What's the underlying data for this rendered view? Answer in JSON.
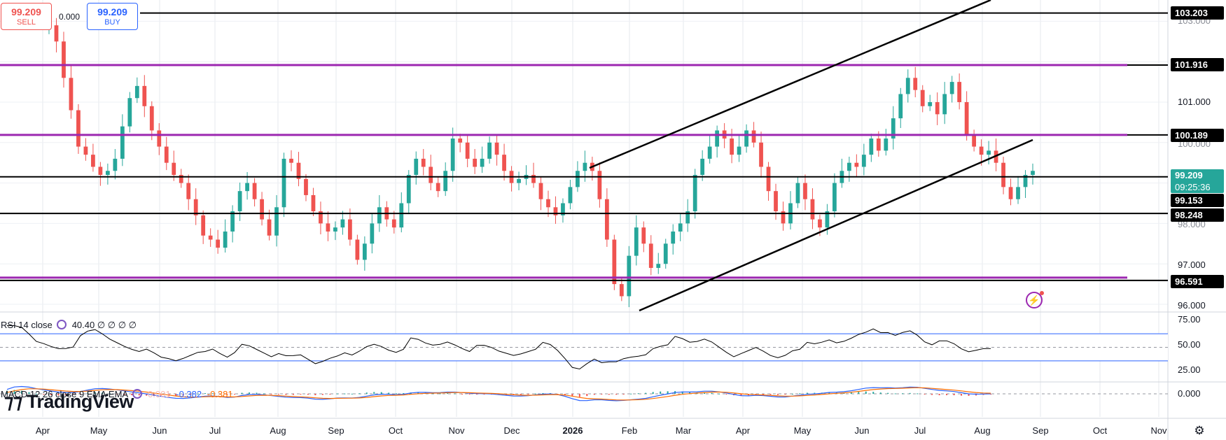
{
  "trade": {
    "sell_price": "99.209",
    "sell_label": "SELL",
    "spread": "0.000",
    "buy_price": "99.209",
    "buy_label": "BUY"
  },
  "price_axis": {
    "ticks": [
      "103.000",
      "101.000",
      "100.000",
      "97.000",
      "96.000"
    ],
    "tags": [
      {
        "value": "103.203",
        "color": "#000000"
      },
      {
        "value": "101.916",
        "color": "#000000"
      },
      {
        "value": "100.189",
        "color": "#000000"
      },
      {
        "value": "99.153",
        "color": "#000000"
      },
      {
        "value": "98.248",
        "color": "#000000"
      },
      {
        "value": "96.591",
        "color": "#000000"
      }
    ],
    "current": {
      "price": "99.209",
      "countdown": "09:25:36",
      "color": "#26a69a"
    },
    "partial_tick": "98.000"
  },
  "rsi": {
    "legend_title": "RSI 14 close",
    "legend_value": "40.40",
    "legend_extra": "∅ ∅ ∅ ∅",
    "ticks": [
      "75.00",
      "50.00",
      "25.00"
    ]
  },
  "macd": {
    "legend_title": "MACD 12 26 close 9 EMA EMA",
    "value_hist": "0.001",
    "value_macd": "-0.382",
    "value_signal": "-0.381",
    "ticks": [
      "0.000"
    ]
  },
  "time_axis": {
    "months": [
      "Apr",
      "May",
      "Jun",
      "Jul",
      "Aug",
      "Sep",
      "Oct",
      "Nov",
      "Dec",
      "2026",
      "Feb",
      "Mar",
      "Apr",
      "May",
      "Jun",
      "Jul",
      "Aug",
      "Sep",
      "Oct",
      "Nov"
    ]
  },
  "watermark": "TradingView",
  "icons": {
    "settings": "gear-icon",
    "replay": "lightning-icon"
  },
  "colors": {
    "up": "#26a69a",
    "down": "#ef5350",
    "sr_line": "#9c27b0",
    "rsi": "#000000",
    "macd": "#2962ff",
    "signal": "#ff6d00"
  },
  "chart_data": {
    "type": "candlestick",
    "instrument_price_current": 99.209,
    "ylim": [
      95.8,
      103.5
    ],
    "horizontal_levels": [
      103.203,
      101.916,
      100.189,
      99.153,
      98.248,
      96.591
    ],
    "purple_levels": [
      101.916,
      100.189,
      96.591
    ],
    "x_range": [
      "Apr",
      "Nov"
    ],
    "close_series": [
      102.9,
      102.5,
      101.6,
      100.8,
      99.9,
      99.7,
      99.4,
      99.2,
      99.3,
      99.6,
      100.4,
      101.1,
      101.4,
      100.9,
      100.3,
      99.9,
      99.5,
      99.2,
      99.0,
      98.6,
      98.2,
      97.7,
      97.6,
      97.4,
      97.8,
      98.3,
      98.8,
      99.0,
      98.6,
      98.1,
      97.7,
      98.4,
      99.6,
      99.5,
      99.1,
      98.7,
      98.3,
      98.0,
      97.8,
      97.9,
      98.1,
      97.6,
      97.1,
      97.5,
      98.0,
      98.4,
      98.1,
      97.9,
      98.5,
      99.2,
      99.6,
      99.4,
      99.0,
      98.8,
      99.3,
      100.1,
      100.0,
      99.6,
      99.4,
      99.6,
      100.0,
      99.7,
      99.3,
      99.0,
      99.1,
      99.2,
      99.0,
      98.6,
      98.4,
      98.2,
      98.5,
      98.9,
      99.3,
      99.5,
      99.3,
      98.6,
      97.6,
      96.5,
      96.2,
      97.2,
      97.9,
      97.5,
      96.9,
      97.0,
      97.5,
      97.8,
      98.0,
      98.3,
      99.2,
      99.6,
      99.9,
      100.3,
      100.1,
      99.7,
      99.9,
      100.3,
      100.0,
      99.4,
      98.8,
      98.3,
      98.0,
      98.5,
      99.0,
      98.6,
      98.1,
      97.9,
      98.3,
      99.0,
      99.3,
      99.5,
      99.4,
      99.7,
      100.1,
      99.8,
      100.1,
      100.6,
      101.2,
      101.6,
      101.3,
      100.9,
      101.0,
      100.7,
      101.2,
      101.5,
      101.0,
      100.2,
      99.9,
      99.7,
      99.8,
      99.5,
      98.9,
      98.6,
      98.9,
      99.2,
      99.3
    ],
    "rsi_range": [
      0,
      100
    ],
    "rsi_levels": [
      70,
      50,
      30
    ]
  }
}
